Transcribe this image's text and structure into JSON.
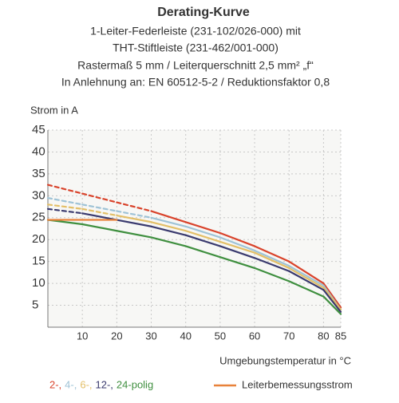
{
  "chart_data": {
    "type": "line",
    "title": "Derating-Kurve",
    "subtitle_lines": [
      "1-Leiter-Federleiste (231-102/026-000) mit",
      "THT-Stiftleiste (231-462/001-000)",
      "Rastermaß 5 mm / Leiterquerschnitt 2,5 mm² „f“",
      "In Anlehnung an: EN 60512-5-2 / Reduktionsfaktor 0,8"
    ],
    "ylabel": "Strom in A",
    "xlabel": "Umgebungstemperatur in °C",
    "x": [
      0,
      10,
      20,
      30,
      40,
      50,
      60,
      70,
      80,
      85
    ],
    "xlim": [
      0,
      85
    ],
    "xticks": [
      10,
      20,
      30,
      40,
      50,
      60,
      70,
      80,
      85
    ],
    "ylim": [
      0,
      45
    ],
    "yticks": [
      5,
      10,
      15,
      20,
      25,
      30,
      35,
      40,
      45
    ],
    "grid": true,
    "series": [
      {
        "name": "2-,",
        "color": "#d9432b",
        "values": [
          32.5,
          30.5,
          28.5,
          26.5,
          24,
          21.5,
          18.5,
          15,
          10,
          4.5
        ]
      },
      {
        "name": "4-,",
        "color": "#9fc3d6",
        "values": [
          29.5,
          28,
          26.5,
          25,
          23,
          20.5,
          17.5,
          14,
          9.5,
          4
        ]
      },
      {
        "name": "6-,",
        "color": "#e3bf68",
        "values": [
          28,
          27,
          25.5,
          24,
          22,
          19.5,
          17,
          13.5,
          9,
          4
        ]
      },
      {
        "name": "12-,",
        "color": "#3a3a6e",
        "values": [
          27,
          26,
          24.5,
          23,
          21,
          18.5,
          15.8,
          12.8,
          8.5,
          3.5
        ]
      },
      {
        "name": "24-polig",
        "color": "#3f8f3f",
        "values": [
          24.5,
          23.5,
          22,
          20.5,
          18.5,
          16,
          13.5,
          10.5,
          7,
          3
        ]
      }
    ],
    "rated": {
      "name": "Leiterbemessungsstrom",
      "color": "#e8823a",
      "values": [
        24.5,
        24.5,
        24.5,
        null,
        null,
        null,
        null,
        null,
        null,
        null
      ]
    }
  }
}
